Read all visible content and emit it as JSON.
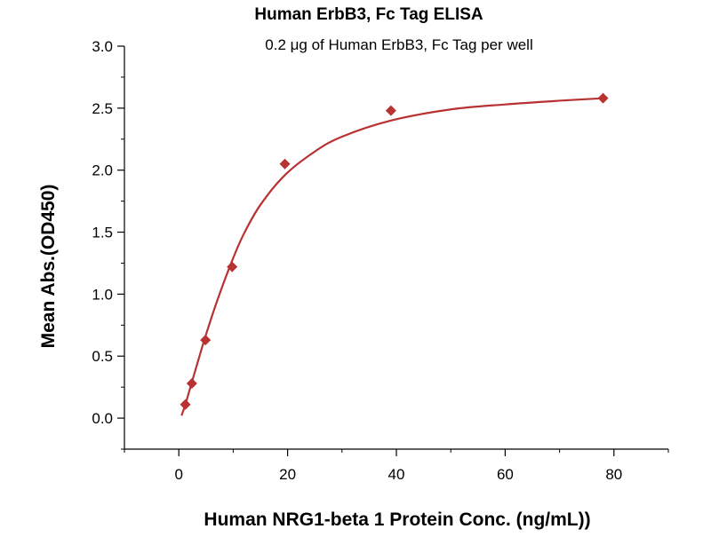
{
  "chart_data": {
    "type": "scatter",
    "title": "Human ErbB3, Fc Tag ELISA",
    "subtitle": "0.2 μg of Human ErbB3, Fc Tag per well",
    "xlabel": "Human NRG1-beta 1 Protein Conc. (ng/mL))",
    "ylabel": "Mean Abs.(OD450)",
    "xlim": [
      -10,
      90
    ],
    "ylim": [
      -0.25,
      3.0
    ],
    "x_ticks": [
      0,
      20,
      40,
      60,
      80
    ],
    "x_tick_labels": [
      "0",
      "20",
      "40",
      "60",
      "80"
    ],
    "y_ticks": [
      0.0,
      0.5,
      1.0,
      1.5,
      2.0,
      2.5,
      3.0
    ],
    "y_tick_labels": [
      "0.0",
      "0.5",
      "1.0",
      "1.5",
      "2.0",
      "2.5",
      "3.0"
    ],
    "grid": false,
    "legend": "none",
    "color": "#b83232",
    "series": [
      {
        "points": [
          {
            "x": 1.2,
            "y": 0.11
          },
          {
            "x": 2.4,
            "y": 0.28
          },
          {
            "x": 4.9,
            "y": 0.63
          },
          {
            "x": 9.8,
            "y": 1.22
          },
          {
            "x": 19.5,
            "y": 2.05
          },
          {
            "x": 39.0,
            "y": 2.48
          },
          {
            "x": 78.0,
            "y": 2.58
          }
        ],
        "fit_curve": [
          {
            "x": 0.5,
            "y": 0.02
          },
          {
            "x": 1.2,
            "y": 0.11
          },
          {
            "x": 2.4,
            "y": 0.29
          },
          {
            "x": 3.6,
            "y": 0.47
          },
          {
            "x": 4.9,
            "y": 0.66
          },
          {
            "x": 7.0,
            "y": 0.94
          },
          {
            "x": 9.8,
            "y": 1.27
          },
          {
            "x": 12.0,
            "y": 1.49
          },
          {
            "x": 15.0,
            "y": 1.72
          },
          {
            "x": 19.5,
            "y": 1.96
          },
          {
            "x": 25.0,
            "y": 2.15
          },
          {
            "x": 30.0,
            "y": 2.27
          },
          {
            "x": 39.0,
            "y": 2.4
          },
          {
            "x": 50.0,
            "y": 2.49
          },
          {
            "x": 60.0,
            "y": 2.53
          },
          {
            "x": 70.0,
            "y": 2.56
          },
          {
            "x": 78.0,
            "y": 2.58
          }
        ]
      }
    ]
  }
}
